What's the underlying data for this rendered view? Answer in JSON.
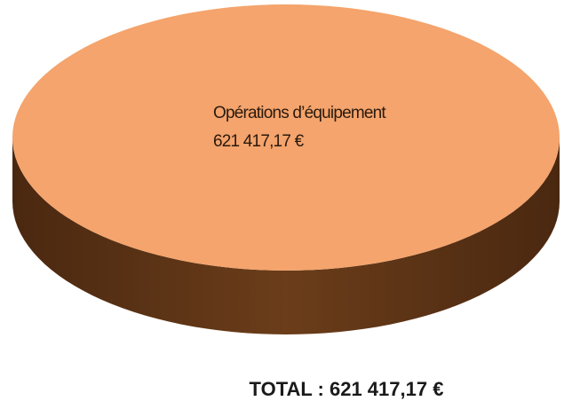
{
  "chart_data": {
    "type": "pie",
    "categories": [
      "Opérations d’équipement"
    ],
    "values": [
      621417.17
    ],
    "value_labels": [
      "621 417,17 €"
    ],
    "colors": [
      "#f4a46c"
    ],
    "side_colors": [
      "#5c3315"
    ],
    "total_label": "TOTAL : 621 417,17 €"
  }
}
